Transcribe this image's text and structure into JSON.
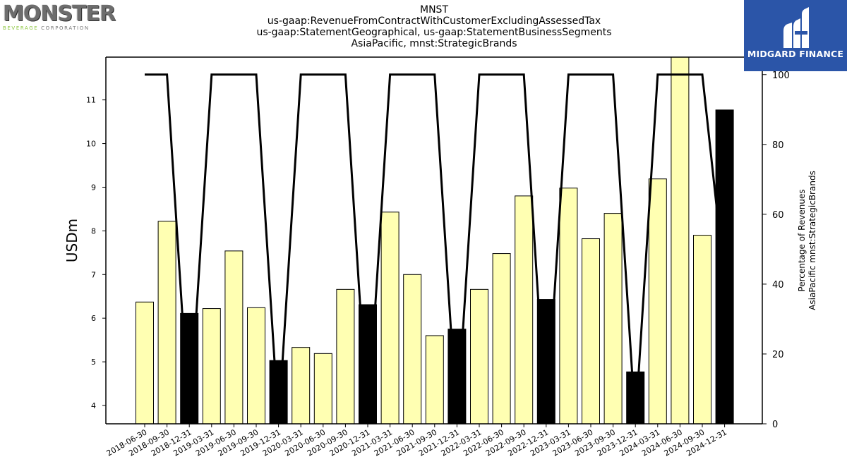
{
  "header": {
    "title_lines": [
      "MNST",
      "us-gaap:RevenueFromContractWithCustomerExcludingAssessedTax",
      "us-gaap:StatementGeographical, us-gaap:StatementBusinessSegments",
      "AsiaPacific, mnst:StrategicBrands"
    ]
  },
  "logos": {
    "left": {
      "word": "MONSTER",
      "sub_accent": "BEVERAGE",
      "sub_rest": " CORPORATION"
    },
    "right": {
      "name": "MIDGARD FINANCE",
      "background": "#2b55a8"
    }
  },
  "chart_data": {
    "type": "bar",
    "categories": [
      "2018-06-30",
      "2018-09-30",
      "2018-12-31",
      "2019-03-31",
      "2019-06-30",
      "2019-09-30",
      "2019-12-31",
      "2020-03-31",
      "2020-06-30",
      "2020-09-30",
      "2020-12-31",
      "2021-03-31",
      "2021-06-30",
      "2021-09-30",
      "2021-12-31",
      "2022-03-31",
      "2022-06-30",
      "2022-09-30",
      "2022-12-31",
      "2023-03-31",
      "2023-06-30",
      "2023-09-30",
      "2023-12-31",
      "2024-03-31",
      "2024-06-30",
      "2024-09-30",
      "2024-12-31"
    ],
    "values": [
      6.37,
      8.22,
      6.11,
      6.22,
      7.54,
      6.24,
      5.03,
      5.33,
      5.19,
      6.66,
      6.31,
      8.43,
      7.0,
      5.6,
      5.75,
      6.66,
      7.48,
      8.8,
      6.43,
      8.98,
      7.82,
      8.4,
      4.77,
      9.19,
      12.0,
      7.9,
      10.77
    ],
    "bar_colors": [
      "#ffffb2",
      "#ffffb2",
      "#000000",
      "#ffffb2",
      "#ffffb2",
      "#ffffb2",
      "#000000",
      "#ffffb2",
      "#ffffb2",
      "#ffffb2",
      "#000000",
      "#ffffb2",
      "#ffffb2",
      "#ffffb2",
      "#000000",
      "#ffffb2",
      "#ffffb2",
      "#ffffb2",
      "#000000",
      "#ffffb2",
      "#ffffb2",
      "#ffffb2",
      "#000000",
      "#ffffb2",
      "#ffffb2",
      "#ffffb2",
      "#000000"
    ],
    "line": {
      "values": [
        100,
        100,
        0,
        100,
        100,
        100,
        0,
        100,
        100,
        100,
        0,
        100,
        100,
        100,
        0,
        100,
        100,
        100,
        0,
        100,
        100,
        100,
        0,
        100,
        100,
        100,
        41
      ],
      "color": "#000000"
    },
    "ylabel": "USDm",
    "ylim": [
      3.58,
      11.98
    ],
    "yticks": [
      4,
      5,
      6,
      7,
      8,
      9,
      10,
      11
    ],
    "y2label_lines": [
      "Percentage of Revenues",
      "AsiaPacific mnst:StrategicBrands"
    ],
    "y2lim": [
      0,
      105
    ],
    "y2ticks": [
      0,
      20,
      40,
      60,
      80,
      100
    ],
    "grid": false
  }
}
